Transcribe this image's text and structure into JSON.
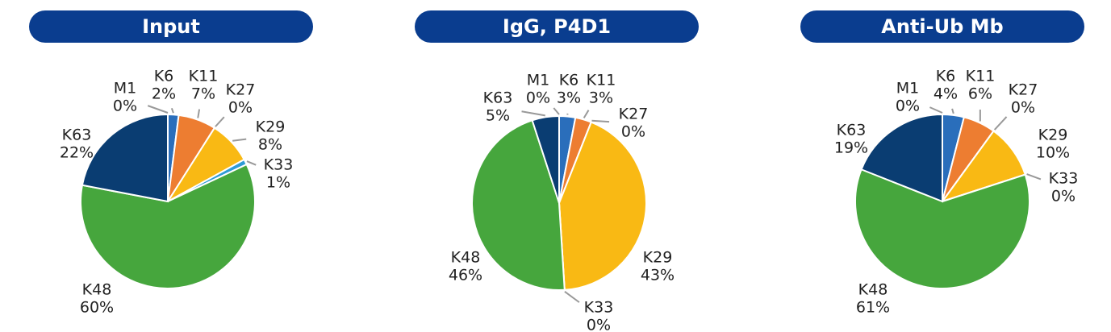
{
  "chart_data": [
    {
      "type": "pie",
      "title": "Input",
      "categories": [
        "M1",
        "K6",
        "K11",
        "K27",
        "K29",
        "K33",
        "K48",
        "K63"
      ],
      "values": [
        0,
        2,
        7,
        0,
        8,
        1,
        60,
        22
      ],
      "value_labels": [
        "0%",
        "2%",
        "7%",
        "0%",
        "8%",
        "1%",
        "60%",
        "22%"
      ],
      "colors": [
        "#7f7f7f",
        "#2a6ebb",
        "#ed7d31",
        "#a5a5a5",
        "#f9b914",
        "#2e9bd6",
        "#46a63d",
        "#0a3d72"
      ]
    },
    {
      "type": "pie",
      "title": "IgG, P4D1",
      "categories": [
        "M1",
        "K6",
        "K11",
        "K27",
        "K29",
        "K33",
        "K48",
        "K63"
      ],
      "values": [
        0,
        3,
        3,
        0,
        43,
        0,
        46,
        5
      ],
      "value_labels": [
        "0%",
        "3%",
        "3%",
        "0%",
        "43%",
        "0%",
        "46%",
        "5%"
      ],
      "colors": [
        "#7f7f7f",
        "#2a6ebb",
        "#ed7d31",
        "#a5a5a5",
        "#f9b914",
        "#2e9bd6",
        "#46a63d",
        "#0a3d72"
      ]
    },
    {
      "type": "pie",
      "title": "Anti-Ub Mb",
      "categories": [
        "M1",
        "K6",
        "K11",
        "K27",
        "K29",
        "K33",
        "K48",
        "K63"
      ],
      "values": [
        0,
        4,
        6,
        0,
        10,
        0,
        61,
        19
      ],
      "value_labels": [
        "0%",
        "4%",
        "6%",
        "0%",
        "10%",
        "0%",
        "61%",
        "19%"
      ],
      "colors": [
        "#7f7f7f",
        "#2a6ebb",
        "#ed7d31",
        "#a5a5a5",
        "#f9b914",
        "#2e9bd6",
        "#46a63d",
        "#0a3d72"
      ]
    }
  ]
}
